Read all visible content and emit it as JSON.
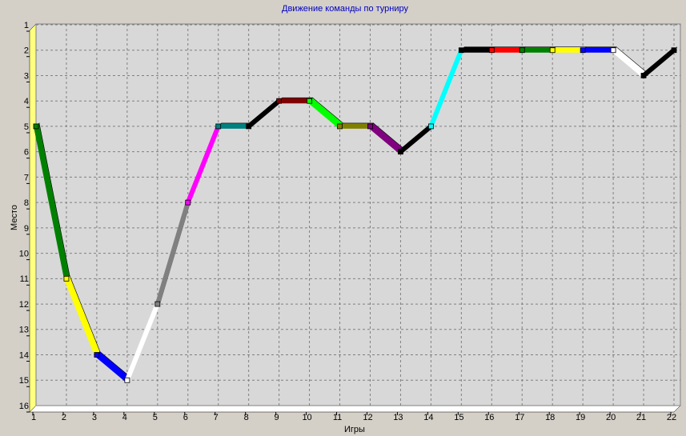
{
  "chart_data": {
    "type": "line",
    "title": "Движение команды по турниру",
    "x_label": "Игры",
    "y_label": "Место",
    "x": [
      1,
      2,
      3,
      4,
      5,
      6,
      7,
      8,
      9,
      10,
      11,
      12,
      13,
      14,
      15,
      16,
      17,
      18,
      19,
      20,
      21,
      22
    ],
    "series": [
      {
        "values": [
          5,
          11,
          14,
          15,
          12,
          8,
          5,
          5,
          4,
          4,
          5,
          5,
          6,
          5,
          2,
          2,
          2,
          2,
          2,
          2,
          3,
          2
        ],
        "segment_colors": [
          "#008000",
          "#ffff00",
          "#0000ff",
          "#ffffff",
          "#808080",
          "#ff00ff",
          "#008080",
          "#000000",
          "#800000",
          "#00ff00",
          "#808000",
          "#800080",
          "#000000",
          "#00ffff",
          "#000000",
          "#ff0000",
          "#008000",
          "#ffff00",
          "#0000ff",
          "#ffffff",
          "#000000"
        ]
      }
    ],
    "xlim": [
      1,
      22
    ],
    "ylim": [
      1,
      16
    ],
    "y_inverted": true,
    "xticks": [
      1,
      2,
      3,
      4,
      5,
      6,
      7,
      8,
      9,
      10,
      11,
      12,
      13,
      14,
      15,
      16,
      17,
      18,
      19,
      20,
      21,
      22
    ],
    "yticks": [
      1,
      2,
      3,
      4,
      5,
      6,
      7,
      8,
      9,
      10,
      11,
      12,
      13,
      14,
      15,
      16
    ],
    "grid": true
  }
}
